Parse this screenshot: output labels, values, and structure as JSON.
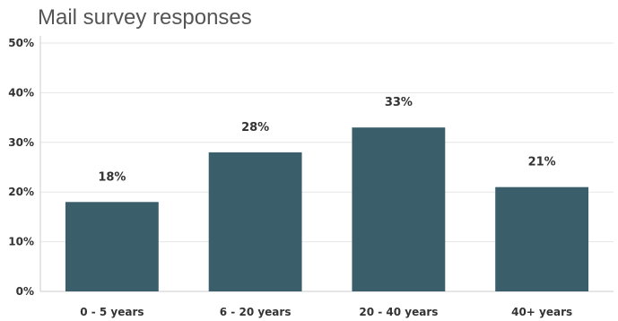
{
  "chart_data": {
    "type": "bar",
    "title": "Mail survey responses",
    "categories": [
      "0 - 5 years",
      "6 - 20 years",
      "20 - 40 years",
      "40+ years"
    ],
    "values": [
      18,
      28,
      33,
      21
    ],
    "data_labels": [
      "18%",
      "28%",
      "33%",
      "21%"
    ],
    "yticks": [
      0,
      10,
      20,
      30,
      40,
      50
    ],
    "ytick_labels": [
      "0%",
      "10%",
      "20%",
      "30%",
      "40%",
      "50%"
    ],
    "ylim": [
      0,
      50
    ],
    "xlabel": "",
    "ylabel": "",
    "grid": true,
    "legend": false,
    "colors": {
      "bar": "#3a5f6b",
      "grid": "#e6e6e6",
      "axis": "#cccccc"
    }
  }
}
